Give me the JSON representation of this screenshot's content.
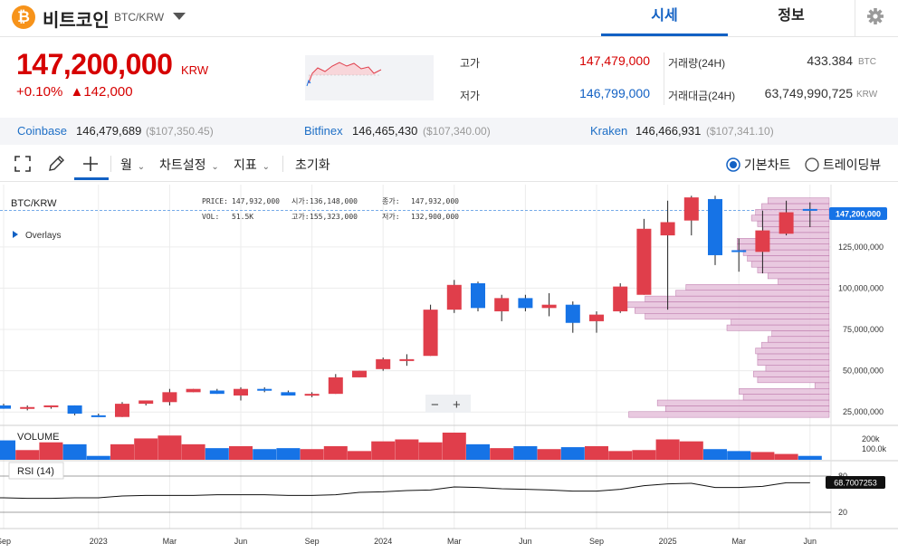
{
  "header": {
    "coin_logo": "₿",
    "coin_name": "비트코인",
    "coin_code": "BTC/KRW",
    "tabs": [
      "시세",
      "정보"
    ],
    "settings_icon": "gear-icon"
  },
  "price": {
    "current": "147,200,000",
    "unit": "KRW",
    "change_pct": "+0.10%",
    "change_amt": "▲142,000"
  },
  "stats": {
    "high_label": "고가",
    "high": "147,479,000",
    "low_label": "저가",
    "low": "146,799,000",
    "volume_label": "거래량(24H)",
    "volume": "433.384",
    "volume_unit": "BTC",
    "amount_label": "거래대금(24H)",
    "amount": "63,749,990,725",
    "amount_unit": "KRW"
  },
  "exchanges": [
    {
      "name": "Coinbase",
      "krw": "146,479,689",
      "usd": "($107,350.45)"
    },
    {
      "name": "Bitfinex",
      "krw": "146,465,430",
      "usd": "($107,340.00)"
    },
    {
      "name": "Kraken",
      "krw": "146,466,931",
      "usd": "($107,341.10)"
    }
  ],
  "toolbar": {
    "period": "월",
    "chart_settings": "차트설정",
    "indicators": "지표",
    "reset": "초기화",
    "view_basic": "기본차트",
    "view_tradingview": "트레이딩뷰",
    "selected_view": "기본차트"
  },
  "chart_info": {
    "symbol": "BTC/KRW",
    "price_label": "PRICE:",
    "price": "147,932,000",
    "vol_label": "VOL:",
    "vol": "51.5K",
    "open_label": "시가:",
    "open": "136,148,000",
    "high_label": "고가:",
    "high": "155,323,000",
    "close_label": "종가:",
    "close": "147,932,000",
    "low_label": "저가:",
    "low": "132,900,000",
    "overlays": "Overlays",
    "current_price_tag": "147,200,000",
    "volume_label": "VOLUME",
    "rsi_label": "RSI (14)",
    "rsi_value_tag": "68.7007253",
    "zoom_out": "−",
    "zoom_in": "+"
  },
  "chart_data": {
    "type": "candlestick",
    "title": "BTC/KRW",
    "interval": "monthly",
    "y_axis_ticks": [
      {
        "label": "25,000,000",
        "value": 25000000
      },
      {
        "label": "50,000,000",
        "value": 50000000
      },
      {
        "label": "75,000,000",
        "value": 75000000
      },
      {
        "label": "100,000,000",
        "value": 100000000
      },
      {
        "label": "125,000,000",
        "value": 125000000
      }
    ],
    "ylim": [
      18000000,
      160000000
    ],
    "x_axis_labels": [
      {
        "label": "Sep",
        "index": 0
      },
      {
        "label": "2023",
        "index": 4
      },
      {
        "label": "Mar",
        "index": 7
      },
      {
        "label": "Jun",
        "index": 10
      },
      {
        "label": "Sep",
        "index": 13
      },
      {
        "label": "2024",
        "index": 16
      },
      {
        "label": "Mar",
        "index": 19
      },
      {
        "label": "Jun",
        "index": 22
      },
      {
        "label": "Sep",
        "index": 25
      },
      {
        "label": "2025",
        "index": 28
      },
      {
        "label": "Mar",
        "index": 31
      },
      {
        "label": "Jun",
        "index": 34
      }
    ],
    "candles": [
      {
        "o": 29,
        "h": 30,
        "l": 27,
        "c": 27
      },
      {
        "o": 27,
        "h": 29,
        "l": 26,
        "c": 28
      },
      {
        "o": 28,
        "h": 29,
        "l": 27,
        "c": 29
      },
      {
        "o": 29,
        "h": 29,
        "l": 23,
        "c": 24
      },
      {
        "o": 23,
        "h": 24,
        "l": 22,
        "c": 22
      },
      {
        "o": 22,
        "h": 31,
        "l": 22,
        "c": 30
      },
      {
        "o": 30,
        "h": 31,
        "l": 29,
        "c": 32
      },
      {
        "o": 31,
        "h": 39,
        "l": 29,
        "c": 37
      },
      {
        "o": 37,
        "h": 39,
        "l": 37,
        "c": 39
      },
      {
        "o": 38,
        "h": 39,
        "l": 36,
        "c": 36
      },
      {
        "o": 35,
        "h": 40,
        "l": 32,
        "c": 39
      },
      {
        "o": 39,
        "h": 40,
        "l": 37,
        "c": 38
      },
      {
        "o": 37,
        "h": 38,
        "l": 35,
        "c": 35
      },
      {
        "o": 35,
        "h": 37,
        "l": 34,
        "c": 36
      },
      {
        "o": 36,
        "h": 48,
        "l": 36,
        "c": 46
      },
      {
        "o": 46,
        "h": 50,
        "l": 46,
        "c": 50
      },
      {
        "o": 51,
        "h": 58,
        "l": 50,
        "c": 57
      },
      {
        "o": 56,
        "h": 60,
        "l": 53,
        "c": 57
      },
      {
        "o": 59,
        "h": 90,
        "l": 59,
        "c": 87
      },
      {
        "o": 87,
        "h": 105,
        "l": 85,
        "c": 102
      },
      {
        "o": 103,
        "h": 104,
        "l": 86,
        "c": 88
      },
      {
        "o": 86,
        "h": 96,
        "l": 80,
        "c": 94
      },
      {
        "o": 94,
        "h": 96,
        "l": 86,
        "c": 88
      },
      {
        "o": 88,
        "h": 97,
        "l": 83,
        "c": 90
      },
      {
        "o": 90,
        "h": 92,
        "l": 73,
        "c": 79
      },
      {
        "o": 80,
        "h": 86,
        "l": 73,
        "c": 84
      },
      {
        "o": 86,
        "h": 103,
        "l": 85,
        "c": 101
      },
      {
        "o": 96,
        "h": 142,
        "l": 96,
        "c": 136
      },
      {
        "o": 132,
        "h": 153,
        "l": 87,
        "c": 140
      },
      {
        "o": 141,
        "h": 156,
        "l": 132,
        "c": 155
      },
      {
        "o": 154,
        "h": 156,
        "l": 114,
        "c": 120
      },
      {
        "o": 123,
        "h": 130,
        "l": 110,
        "c": 122
      },
      {
        "o": 122,
        "h": 147,
        "l": 109,
        "c": 135
      },
      {
        "o": 133,
        "h": 153,
        "l": 132,
        "c": 146
      },
      {
        "o": 148,
        "h": 152,
        "l": 137,
        "c": 147
      }
    ],
    "candle_units": "million KRW",
    "volume_k": [
      100,
      50,
      90,
      80,
      20,
      80,
      110,
      125,
      80,
      60,
      70,
      55,
      60,
      55,
      70,
      45,
      95,
      105,
      90,
      140,
      80,
      60,
      70,
      55,
      65,
      70,
      45,
      50,
      105,
      95,
      55,
      45,
      40,
      30,
      20
    ],
    "volume_axis": [
      "200k",
      "100.0k"
    ],
    "rsi": [
      44,
      43,
      43,
      44,
      44,
      47,
      48,
      48,
      48,
      49,
      49,
      49,
      48,
      48,
      49,
      53,
      54,
      56,
      57,
      62,
      61,
      59,
      58,
      57,
      55,
      55,
      58,
      64,
      67,
      68,
      61,
      61,
      63,
      69,
      69
    ],
    "rsi_axis": [
      "80",
      "20"
    ],
    "volume_profile_million": [
      {
        "price": 23.5,
        "width": 0.98
      },
      {
        "price": 27,
        "width": 0.8
      },
      {
        "price": 30.5,
        "width": 0.84
      },
      {
        "price": 34,
        "width": 0.42
      },
      {
        "price": 37.5,
        "width": 0.44
      },
      {
        "price": 41,
        "width": 0.07
      },
      {
        "price": 44.5,
        "width": 0.35
      },
      {
        "price": 48,
        "width": 0.37
      },
      {
        "price": 51.5,
        "width": 0.31
      },
      {
        "price": 55,
        "width": 0.35
      },
      {
        "price": 58.5,
        "width": 0.35
      },
      {
        "price": 62,
        "width": 0.36
      },
      {
        "price": 65.5,
        "width": 0.33
      },
      {
        "price": 69,
        "width": 0.3
      },
      {
        "price": 72.5,
        "width": 0.28
      },
      {
        "price": 76,
        "width": 0.5
      },
      {
        "price": 79.5,
        "width": 0.48
      },
      {
        "price": 83,
        "width": 0.9
      },
      {
        "price": 86.5,
        "width": 0.95
      },
      {
        "price": 90,
        "width": 1.0
      },
      {
        "price": 93.5,
        "width": 0.9
      },
      {
        "price": 97,
        "width": 0.75
      },
      {
        "price": 100.5,
        "width": 0.7
      },
      {
        "price": 104,
        "width": 0.25
      },
      {
        "price": 107.5,
        "width": 0.3
      },
      {
        "price": 111,
        "width": 0.35
      },
      {
        "price": 114.5,
        "width": 0.38
      },
      {
        "price": 118,
        "width": 0.4
      },
      {
        "price": 121.5,
        "width": 0.42
      },
      {
        "price": 125,
        "width": 0.45
      },
      {
        "price": 128.5,
        "width": 0.45
      },
      {
        "price": 132,
        "width": 0.3
      },
      {
        "price": 135.5,
        "width": 0.32
      },
      {
        "price": 139,
        "width": 0.35
      },
      {
        "price": 142.5,
        "width": 0.38
      },
      {
        "price": 146,
        "width": 0.36
      },
      {
        "price": 149.5,
        "width": 0.33
      },
      {
        "price": 153,
        "width": 0.3
      }
    ]
  },
  "colors": {
    "up": "#e03e4b",
    "down": "#1673e6",
    "accent": "#1261c4",
    "profile": "#e7c4dd"
  }
}
